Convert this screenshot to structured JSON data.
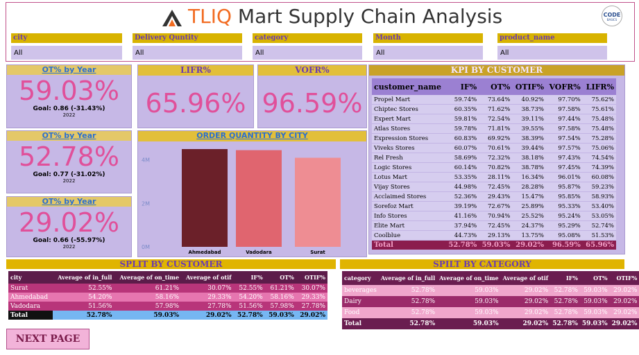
{
  "header": {
    "title_brand": "TLIQ",
    "title_rest": "Mart Supply Chain Analysis",
    "logo_top": "CODE",
    "logo_bottom": "BASICS"
  },
  "filters": [
    {
      "label": "city",
      "value": "All"
    },
    {
      "label": "Delivery Quntity",
      "value": "All"
    },
    {
      "label": "category",
      "value": "All"
    },
    {
      "label": "Month",
      "value": "All"
    },
    {
      "label": "product_name",
      "value": "All"
    }
  ],
  "ot_cards": [
    {
      "title": "OT% by Year",
      "value": "59.03%",
      "goal_label": "Goal:",
      "goal": "0.86 (-31.43%)",
      "year": "2022"
    },
    {
      "title": "OT% by Year",
      "value": "52.78%",
      "goal_label": "Goal:",
      "goal": "0.77 (-31.02%)",
      "year": "2022"
    },
    {
      "title": "OT% by Year",
      "value": "29.02%",
      "goal_label": "Goal:",
      "goal": "0.66 (-55.97%)",
      "year": "2022"
    }
  ],
  "lifr": {
    "title": "LIFR%",
    "value": "65.96%"
  },
  "vofr": {
    "title": "VOFR%",
    "value": "96.59%"
  },
  "order_chart": {
    "type": "bar",
    "title": "ORDER QUANTITY BY CITY",
    "categories": [
      "Ahmedabad",
      "Vadodara",
      "Surat"
    ],
    "values": [
      4500000,
      4450000,
      4100000
    ],
    "colors": [
      "#6b2029",
      "#e0656f",
      "#ee8d93"
    ],
    "ylim": [
      0,
      4500000
    ],
    "yticks": [
      {
        "value": 0,
        "label": "0M"
      },
      {
        "value": 2000000,
        "label": "2M"
      },
      {
        "value": 4000000,
        "label": "4M"
      }
    ]
  },
  "kpi_table": {
    "title": "KPI BY CUSTOMER",
    "columns": [
      "customer_name",
      "IF%",
      "OT%",
      "OTIF%",
      "VOFR%",
      "LIFR%"
    ],
    "rows": [
      [
        "Propel Mart",
        "59.74%",
        "73.64%",
        "40.92%",
        "97.70%",
        "75.62%"
      ],
      [
        "Chiptec Stores",
        "60.35%",
        "71.62%",
        "38.73%",
        "97.58%",
        "75.61%"
      ],
      [
        "Expert Mart",
        "59.81%",
        "72.54%",
        "39.11%",
        "97.44%",
        "75.48%"
      ],
      [
        "Atlas Stores",
        "59.78%",
        "71.81%",
        "39.55%",
        "97.58%",
        "75.48%"
      ],
      [
        "Expression Stores",
        "60.83%",
        "69.92%",
        "38.39%",
        "97.54%",
        "75.28%"
      ],
      [
        "Viveks Stores",
        "60.07%",
        "70.61%",
        "39.44%",
        "97.57%",
        "75.06%"
      ],
      [
        "Rel Fresh",
        "58.69%",
        "72.32%",
        "38.18%",
        "97.43%",
        "74.54%"
      ],
      [
        "Logic Stores",
        "60.14%",
        "70.82%",
        "38.78%",
        "97.45%",
        "74.39%"
      ],
      [
        "Lotus Mart",
        "53.35%",
        "28.11%",
        "16.34%",
        "96.01%",
        "60.08%"
      ],
      [
        "Vijay Stores",
        "44.98%",
        "72.45%",
        "28.28%",
        "95.87%",
        "59.23%"
      ],
      [
        "Acclaimed Stores",
        "52.36%",
        "29.43%",
        "15.47%",
        "95.85%",
        "58.93%"
      ],
      [
        "Sorefoz Mart",
        "39.19%",
        "72.67%",
        "25.89%",
        "95.33%",
        "53.40%"
      ],
      [
        "Info Stores",
        "41.16%",
        "70.94%",
        "25.52%",
        "95.24%",
        "53.05%"
      ],
      [
        "Elite Mart",
        "37.94%",
        "72.45%",
        "24.37%",
        "95.29%",
        "52.74%"
      ],
      [
        "Coolblue",
        "44.73%",
        "29.13%",
        "13.75%",
        "95.08%",
        "51.53%"
      ]
    ],
    "total": [
      "Total",
      "52.78%",
      "59.03%",
      "29.02%",
      "96.59%",
      "65.96%"
    ]
  },
  "split_customer": {
    "title": "SPLIT BY CUSTOMER",
    "columns": [
      "city",
      "Average of in_full",
      "Average of on_time",
      "Average of otif",
      "IF%",
      "OT%",
      "OTIF%"
    ],
    "rows": [
      [
        "Surat",
        "52.55%",
        "61.21%",
        "30.07%",
        "52.55%",
        "61.21%",
        "30.07%"
      ],
      [
        "Ahmedabad",
        "54.20%",
        "58.16%",
        "29.33%",
        "54.20%",
        "58.16%",
        "29.33%"
      ],
      [
        "Vadodara",
        "51.56%",
        "57.98%",
        "27.78%",
        "51.56%",
        "57.98%",
        "27.78%"
      ]
    ],
    "total": [
      "Total",
      "52.78%",
      "59.03%",
      "29.02%",
      "52.78%",
      "59.03%",
      "29.02%"
    ]
  },
  "split_category": {
    "title": "SPILT BY CATEGORY",
    "columns": [
      "category",
      "Average of in_full",
      "Average of on_time",
      "Average of otif",
      "IF%",
      "OT%",
      "OTIF%"
    ],
    "rows": [
      [
        "beverages",
        "52.78%",
        "59.03%",
        "29.02%",
        "52.78%",
        "59.03%",
        "29.02%"
      ],
      [
        "Dairy",
        "52.78%",
        "59.03%",
        "29.02%",
        "52.78%",
        "59.03%",
        "29.02%"
      ],
      [
        "Food",
        "52.78%",
        "59.03%",
        "29.02%",
        "52.78%",
        "59.03%",
        "29.02%"
      ]
    ],
    "total": [
      "Total",
      "52.78%",
      "59.03%",
      "29.02%",
      "52.78%",
      "59.03%",
      "29.02%"
    ]
  },
  "button": "NEXT PAGE"
}
